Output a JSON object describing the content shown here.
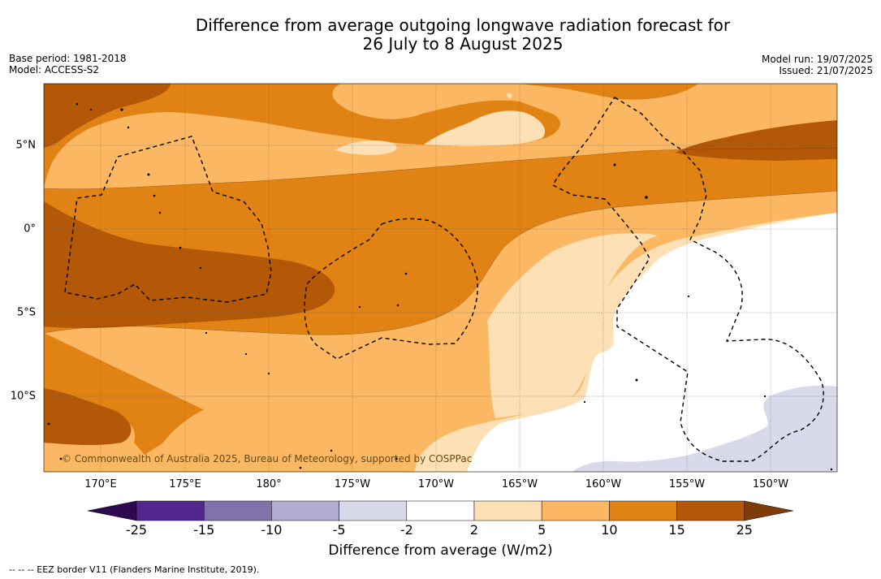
{
  "title": {
    "line1": "Difference from average outgoing longwave radiation forecast for",
    "line2": "26 July to 8 August 2025"
  },
  "meta_left": {
    "base_period": "Base period: 1981-2018",
    "model": "Model: ACCESS-S2"
  },
  "meta_right": {
    "model_run": "Model run: 19/07/2025",
    "issued": "Issued: 21/07/2025"
  },
  "map": {
    "lon_ticks": [
      "170°E",
      "175°E",
      "180°",
      "175°W",
      "170°W",
      "165°W",
      "160°W",
      "155°W",
      "150°W"
    ],
    "lat_ticks": [
      "5°N",
      "0°",
      "5°S",
      "10°S"
    ],
    "extent": {
      "lon_min_east": 166,
      "lon_max_east": 213.5,
      "lat_min": -14.5,
      "lat_max": 8.5
    },
    "copyright": "© Commonwealth of Australia 2025, Bureau of Meteorology, supported by COSPPac"
  },
  "colorbar": {
    "tick_labels": [
      "-25",
      "-15",
      "-10",
      "-5",
      "-2",
      "2",
      "5",
      "10",
      "15",
      "25"
    ],
    "colors": [
      "#2d0a4e",
      "#54278f",
      "#8073ac",
      "#b2abd2",
      "#d8daeb",
      "#ffffff",
      "#fee0b6",
      "#fbb761",
      "#e08214",
      "#b35806",
      "#7f3b08"
    ],
    "label": "Difference from average (W/m2)"
  },
  "footnote": "--  --  -- EEZ border V11 (Flanders Marine Institute, 2019)."
}
